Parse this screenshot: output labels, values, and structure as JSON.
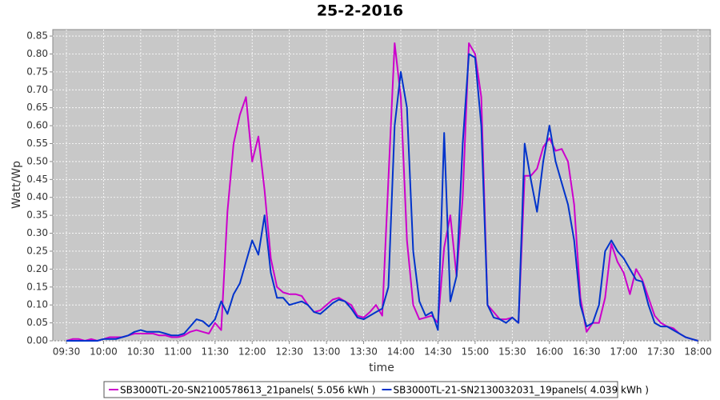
{
  "chart_data": {
    "type": "line",
    "title": "25-2-2016",
    "x_label": "time",
    "y_label": "Watt/Wp",
    "x": [
      "09:30",
      "09:35",
      "09:40",
      "09:45",
      "09:50",
      "09:55",
      "10:00",
      "10:05",
      "10:10",
      "10:15",
      "10:20",
      "10:25",
      "10:30",
      "10:35",
      "10:40",
      "10:45",
      "10:50",
      "10:55",
      "11:00",
      "11:05",
      "11:10",
      "11:15",
      "11:20",
      "11:25",
      "11:30",
      "11:35",
      "11:40",
      "11:45",
      "11:50",
      "11:55",
      "12:00",
      "12:05",
      "12:10",
      "12:15",
      "12:20",
      "12:25",
      "12:30",
      "12:35",
      "12:40",
      "12:45",
      "12:50",
      "12:55",
      "13:00",
      "13:05",
      "13:10",
      "13:15",
      "13:20",
      "13:25",
      "13:30",
      "13:35",
      "13:40",
      "13:45",
      "13:50",
      "13:55",
      "14:00",
      "14:05",
      "14:10",
      "14:15",
      "14:20",
      "14:25",
      "14:30",
      "14:35",
      "14:40",
      "14:45",
      "14:50",
      "14:55",
      "15:00",
      "15:05",
      "15:10",
      "15:15",
      "15:20",
      "15:25",
      "15:30",
      "15:35",
      "15:40",
      "15:45",
      "15:50",
      "15:55",
      "16:00",
      "16:05",
      "16:10",
      "16:15",
      "16:20",
      "16:25",
      "16:30",
      "16:35",
      "16:40",
      "16:45",
      "16:50",
      "16:55",
      "17:00",
      "17:05",
      "17:10",
      "17:15",
      "17:20",
      "17:25",
      "17:30",
      "17:35",
      "17:40",
      "17:45",
      "17:50",
      "17:55",
      "18:00"
    ],
    "series": [
      {
        "name": "SB3000TL-20-SN2100578613_21panels( 5.056 kWh )",
        "color": "#cc00cc",
        "values": [
          0,
          0.005,
          0.005,
          0,
          0.005,
          0,
          0.005,
          0.01,
          0.01,
          0.01,
          0.015,
          0.02,
          0.02,
          0.02,
          0.02,
          0.015,
          0.015,
          0.01,
          0.01,
          0.015,
          0.025,
          0.03,
          0.025,
          0.02,
          0.05,
          0.03,
          0.36,
          0.55,
          0.63,
          0.68,
          0.5,
          0.57,
          0.42,
          0.23,
          0.15,
          0.135,
          0.13,
          0.13,
          0.125,
          0.1,
          0.08,
          0.085,
          0.1,
          0.115,
          0.12,
          0.11,
          0.1,
          0.07,
          0.065,
          0.08,
          0.1,
          0.07,
          0.45,
          0.83,
          0.68,
          0.28,
          0.1,
          0.06,
          0.065,
          0.07,
          0.05,
          0.26,
          0.35,
          0.18,
          0.4,
          0.83,
          0.8,
          0.68,
          0.1,
          0.08,
          0.06,
          0.06,
          0.065,
          0.05,
          0.46,
          0.46,
          0.48,
          0.54,
          0.565,
          0.53,
          0.535,
          0.5,
          0.38,
          0.12,
          0.025,
          0.05,
          0.05,
          0.12,
          0.27,
          0.22,
          0.19,
          0.13,
          0.2,
          0.17,
          0.12,
          0.07,
          0.05,
          0.04,
          0.035,
          0.02,
          0.01,
          0.005,
          0
        ]
      },
      {
        "name": "SB3000TL-21-SN2130032031_19panels( 4.039 kWh )",
        "color": "#0033cc",
        "values": [
          0,
          0,
          0,
          0,
          0,
          0,
          0.005,
          0.005,
          0.005,
          0.01,
          0.015,
          0.025,
          0.03,
          0.025,
          0.025,
          0.025,
          0.02,
          0.015,
          0.015,
          0.02,
          0.04,
          0.06,
          0.055,
          0.04,
          0.06,
          0.11,
          0.075,
          0.13,
          0.16,
          0.22,
          0.28,
          0.24,
          0.35,
          0.19,
          0.12,
          0.12,
          0.1,
          0.105,
          0.11,
          0.1,
          0.08,
          0.075,
          0.09,
          0.105,
          0.115,
          0.11,
          0.09,
          0.065,
          0.06,
          0.07,
          0.08,
          0.09,
          0.15,
          0.6,
          0.75,
          0.65,
          0.25,
          0.11,
          0.07,
          0.08,
          0.03,
          0.58,
          0.11,
          0.18,
          0.55,
          0.8,
          0.79,
          0.6,
          0.1,
          0.065,
          0.06,
          0.05,
          0.065,
          0.05,
          0.55,
          0.45,
          0.36,
          0.5,
          0.6,
          0.5,
          0.44,
          0.38,
          0.28,
          0.1,
          0.04,
          0.05,
          0.1,
          0.25,
          0.28,
          0.25,
          0.23,
          0.2,
          0.17,
          0.165,
          0.1,
          0.05,
          0.04,
          0.04,
          0.03,
          0.02,
          0.01,
          0.005,
          0
        ]
      }
    ],
    "xlim": [
      "09:19",
      "18:10"
    ],
    "xticks": [
      "09:30",
      "10:00",
      "10:30",
      "11:00",
      "11:30",
      "12:00",
      "12:30",
      "13:00",
      "13:30",
      "14:00",
      "14:30",
      "15:00",
      "15:30",
      "16:00",
      "16:30",
      "17:00",
      "17:30",
      "18:00"
    ],
    "ylim": [
      0,
      0.868
    ],
    "yticks": [
      {
        "value": 0,
        "label": "0.00"
      },
      {
        "value": 0.05,
        "label": "0.05"
      },
      {
        "value": 0.1,
        "label": "0.10"
      },
      {
        "value": 0.15,
        "label": "0.15"
      },
      {
        "value": 0.2,
        "label": "0.20"
      },
      {
        "value": 0.25,
        "label": "0.25"
      },
      {
        "value": 0.3,
        "label": "0.30"
      },
      {
        "value": 0.35,
        "label": "0.35"
      },
      {
        "value": 0.4,
        "label": "0.40"
      },
      {
        "value": 0.45,
        "label": "0.45"
      },
      {
        "value": 0.5,
        "label": "0.50"
      },
      {
        "value": 0.55,
        "label": "0.55"
      },
      {
        "value": 0.6,
        "label": "0.60"
      },
      {
        "value": 0.65,
        "label": "0.65"
      },
      {
        "value": 0.7,
        "label": "0.70"
      },
      {
        "value": 0.75,
        "label": "0.75"
      },
      {
        "value": 0.8,
        "label": "0.80"
      },
      {
        "value": 0.85,
        "label": "0.85"
      }
    ],
    "grid": true,
    "legend": "bottom"
  }
}
